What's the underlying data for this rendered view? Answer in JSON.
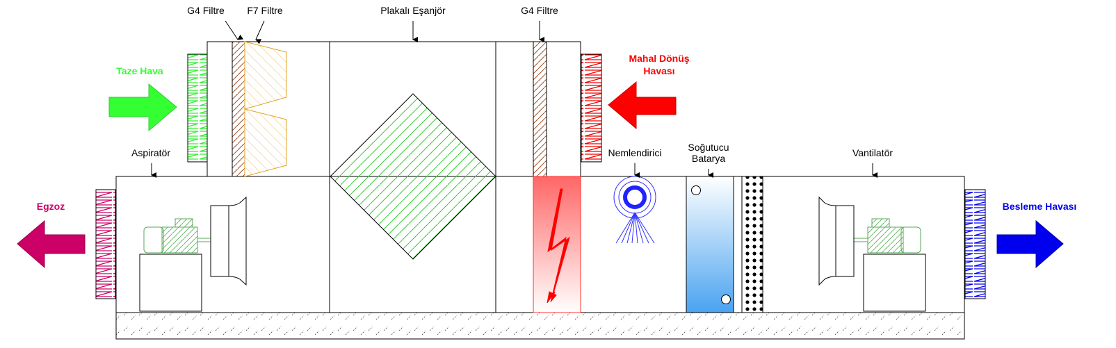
{
  "labels": {
    "g4_filter_top": "G4 Filtre",
    "f7_filter": "F7 Filtre",
    "plate_exchanger": "Plakalı Eşanjör",
    "g4_filter_right": "G4 Filtre",
    "aspirator": "Aspiratör",
    "humidifier": "Nemlendirici",
    "cooling_coil_line1": "Soğutucu",
    "cooling_coil_line2": "Batarya",
    "fan": "Vantilatör"
  },
  "flows": {
    "fresh_air": "Taze Hava",
    "return_air_line1": "Mahal Dönüş",
    "return_air_line2": "Havası",
    "exhaust": "Egzoz",
    "supply_air": "Besleme Havası"
  },
  "colors": {
    "fresh_air": "#33ff33",
    "return_air": "#ff0000",
    "exhaust": "#cc0066",
    "supply_air": "#0000ee",
    "heater": "#ff5555",
    "cooling_coil": "#4aa3f0",
    "plate_hatch": "#33cc33",
    "filter_g4": "#8b4513",
    "filter_f7": "#e0a020"
  },
  "icons": {
    "heater": "lightning-icon",
    "humidifier": "spray-nozzle-icon",
    "motor": "motor-icon",
    "fan": "fan-icon"
  }
}
